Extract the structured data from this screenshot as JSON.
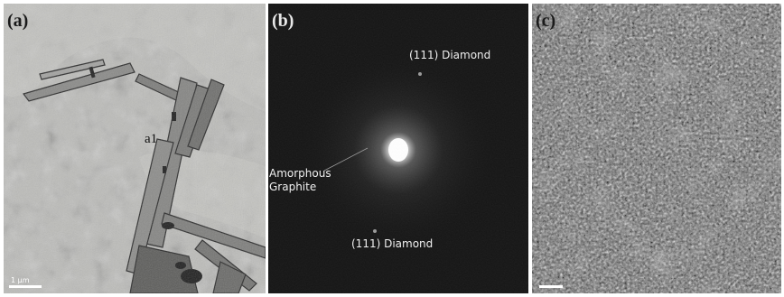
{
  "figure": {
    "panels": [
      {
        "label": "(a)",
        "description_type": "TEM micrograph",
        "feature_label": "a1",
        "scalebar_text": "1 μm"
      },
      {
        "label": "(b)",
        "description_type": "Electron diffraction pattern",
        "annotations": {
          "top_spot": "(111) Diamond",
          "center": "Amorphous Graphite",
          "center_line1": "Amorphous",
          "center_line2": "Graphite",
          "bottom_spot": "(111) Diamond"
        }
      },
      {
        "label": "(c)",
        "description_type": "High-resolution micrograph"
      }
    ]
  }
}
